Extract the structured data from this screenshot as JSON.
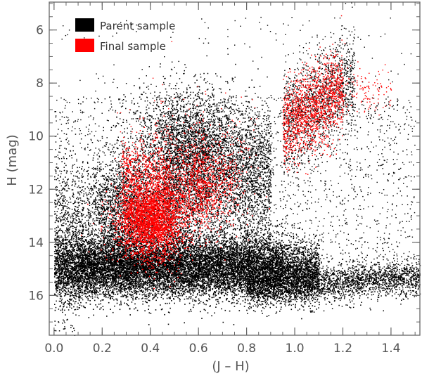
{
  "chart_data": {
    "type": "scatter",
    "title": "",
    "xlabel": "(J – H)",
    "ylabel": "H (mag)",
    "xlim": [
      -0.02,
      1.52
    ],
    "ylim": [
      17.5,
      4.95
    ],
    "y_inverted": true,
    "x_ticks": [
      "0.0",
      "0.2",
      "0.4",
      "0.6",
      "0.8",
      "1.0",
      "1.2",
      "1.4"
    ],
    "x_tick_values": [
      0.0,
      0.2,
      0.4,
      0.6,
      0.8,
      1.0,
      1.2,
      1.4
    ],
    "y_ticks": [
      "6",
      "8",
      "10",
      "12",
      "14",
      "16"
    ],
    "y_tick_values": [
      6,
      8,
      10,
      12,
      14,
      16
    ],
    "grid": false,
    "legend_position": "top-left",
    "series": [
      {
        "name": "Parent sample",
        "color": "#000000",
        "sample_points": [
          [
            0.02,
            16.3
          ],
          [
            0.05,
            15.9
          ],
          [
            0.1,
            15.6
          ],
          [
            0.15,
            16.0
          ],
          [
            0.2,
            15.8
          ],
          [
            0.3,
            15.5
          ],
          [
            0.4,
            15.2
          ],
          [
            0.45,
            15.8
          ],
          [
            0.5,
            15.4
          ],
          [
            0.55,
            15.6
          ],
          [
            0.6,
            15.3
          ],
          [
            0.7,
            15.5
          ],
          [
            0.8,
            15.7
          ],
          [
            0.9,
            15.8
          ],
          [
            1.0,
            15.8
          ],
          [
            1.1,
            15.6
          ],
          [
            1.2,
            15.4
          ],
          [
            1.3,
            15.3
          ],
          [
            1.4,
            15.1
          ],
          [
            1.5,
            15.0
          ],
          [
            0.1,
            12.5
          ],
          [
            0.15,
            13.0
          ],
          [
            0.2,
            12.0
          ],
          [
            0.3,
            11.5
          ],
          [
            0.35,
            10.5
          ],
          [
            0.45,
            11.0
          ],
          [
            0.5,
            10.8
          ],
          [
            0.55,
            10.0
          ],
          [
            0.6,
            11.5
          ],
          [
            0.65,
            12.0
          ],
          [
            0.7,
            11.0
          ],
          [
            0.8,
            10.5
          ],
          [
            0.85,
            12.5
          ],
          [
            0.9,
            13.0
          ],
          [
            1.0,
            13.5
          ],
          [
            1.1,
            12.5
          ],
          [
            1.2,
            11.0
          ],
          [
            1.3,
            10.0
          ],
          [
            1.4,
            9.5
          ],
          [
            1.05,
            8.0
          ],
          [
            1.15,
            7.5
          ],
          [
            0.05,
            14.0
          ],
          [
            0.25,
            14.5
          ],
          [
            0.6,
            9.0
          ],
          [
            0.75,
            8.5
          ]
        ]
      },
      {
        "name": "Final sample",
        "color": "#ff0000",
        "sample_points": [
          [
            0.25,
            11.5
          ],
          [
            0.3,
            12.5
          ],
          [
            0.35,
            13.0
          ],
          [
            0.4,
            13.5
          ],
          [
            0.42,
            12.8
          ],
          [
            0.45,
            13.2
          ],
          [
            0.38,
            14.0
          ],
          [
            0.5,
            12.0
          ],
          [
            0.55,
            11.8
          ],
          [
            0.6,
            12.5
          ],
          [
            0.65,
            11.0
          ],
          [
            0.7,
            12.2
          ],
          [
            0.72,
            10.8
          ],
          [
            0.9,
            10.2
          ],
          [
            0.95,
            9.5
          ],
          [
            1.0,
            10.0
          ],
          [
            1.02,
            8.5
          ],
          [
            1.05,
            9.0
          ],
          [
            1.08,
            8.0
          ],
          [
            1.1,
            7.5
          ],
          [
            1.12,
            8.8
          ],
          [
            1.15,
            7.8
          ],
          [
            1.2,
            8.3
          ],
          [
            1.3,
            8.0
          ],
          [
            1.35,
            8.5
          ],
          [
            1.0,
            11.0
          ]
        ]
      }
    ]
  }
}
